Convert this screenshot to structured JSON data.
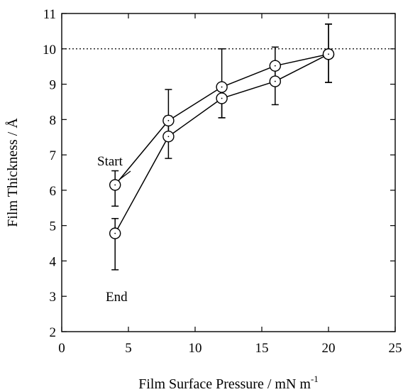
{
  "chart_data": {
    "type": "line",
    "title": "",
    "xlabel": "Film Surface Pressure / mN m",
    "xlabel_superscript": "-1",
    "ylabel": "Film Thickness / Å",
    "xlim": [
      0,
      25
    ],
    "ylim": [
      2,
      11
    ],
    "xticks": [
      0,
      5,
      10,
      15,
      20,
      25
    ],
    "yticks": [
      2,
      3,
      4,
      5,
      6,
      7,
      8,
      9,
      10,
      11
    ],
    "grid": false,
    "legend": "none",
    "reference_line": {
      "y": 10,
      "style": "dotted"
    },
    "series": [
      {
        "points": [
          {
            "x": 4,
            "y": 6.15,
            "yerr_low": 5.55,
            "yerr_high": 6.55
          },
          {
            "x": 8,
            "y": 7.97,
            "yerr_low": 7.55,
            "yerr_high": 8.85
          },
          {
            "x": 12,
            "y": 8.92,
            "yerr_low": 8.05,
            "yerr_high": 10.0
          },
          {
            "x": 16,
            "y": 9.52,
            "yerr_low": 9.0,
            "yerr_high": 10.05
          },
          {
            "x": 20,
            "y": 9.85,
            "yerr_low": 9.05,
            "yerr_high": 10.7
          }
        ]
      },
      {
        "points": [
          {
            "x": 4,
            "y": 4.78,
            "yerr_low": 3.75,
            "yerr_high": 5.2
          },
          {
            "x": 8,
            "y": 7.52,
            "yerr_low": 6.9,
            "yerr_high": 8.1
          },
          {
            "x": 12,
            "y": 8.6,
            "yerr_low": 8.05,
            "yerr_high": 8.9
          },
          {
            "x": 16,
            "y": 9.08,
            "yerr_low": 8.42,
            "yerr_high": 9.5
          },
          {
            "x": 20,
            "y": 9.85,
            "yerr_low": 9.05,
            "yerr_high": 10.7
          }
        ]
      }
    ],
    "annotations": [
      {
        "text": "Start",
        "series_index": 0
      },
      {
        "text": "End",
        "series_index": 1
      }
    ]
  }
}
